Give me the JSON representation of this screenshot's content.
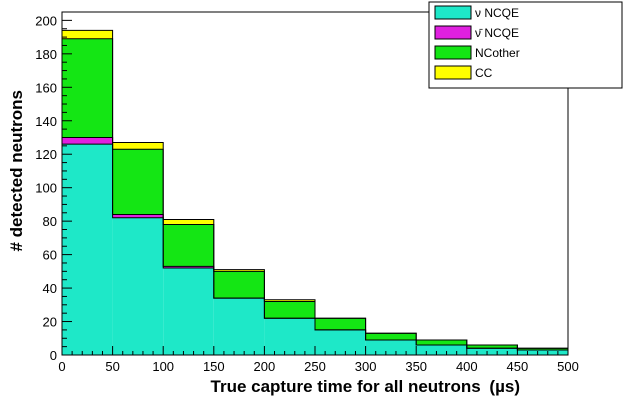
{
  "chart_data": {
    "type": "bar",
    "stacked": true,
    "histogram": true,
    "title": "",
    "xlabel": "True capture time for all neutrons",
    "xlabel_unit": "(µs)",
    "ylabel": "# detected neutrons",
    "xlim": [
      0,
      500
    ],
    "ylim": [
      0,
      205
    ],
    "grid": false,
    "legend_position": "top-right",
    "bin_edges": [
      0,
      50,
      100,
      150,
      200,
      250,
      300,
      350,
      400,
      450,
      500
    ],
    "x_ticks": [
      0,
      50,
      100,
      150,
      200,
      250,
      300,
      350,
      400,
      450,
      500
    ],
    "y_ticks": [
      0,
      20,
      40,
      60,
      80,
      100,
      120,
      140,
      160,
      180,
      200
    ],
    "series": [
      {
        "name": "ν NCQE",
        "color": "#1ee8c8",
        "values": [
          126,
          82,
          52,
          34,
          22,
          15,
          9,
          6,
          4,
          3
        ]
      },
      {
        "name": "ν̄ NCQE",
        "color": "#e020e0",
        "values": [
          4,
          2,
          1,
          0,
          0,
          0,
          0,
          0,
          0,
          0
        ]
      },
      {
        "name": "NCother",
        "color": "#14e614",
        "values": [
          59,
          39,
          25,
          16,
          10,
          7,
          4,
          3,
          2,
          1
        ]
      },
      {
        "name": "CC",
        "color": "#ffff00",
        "values": [
          5,
          4,
          3,
          1,
          1,
          0,
          0,
          0,
          0,
          0
        ]
      }
    ]
  }
}
